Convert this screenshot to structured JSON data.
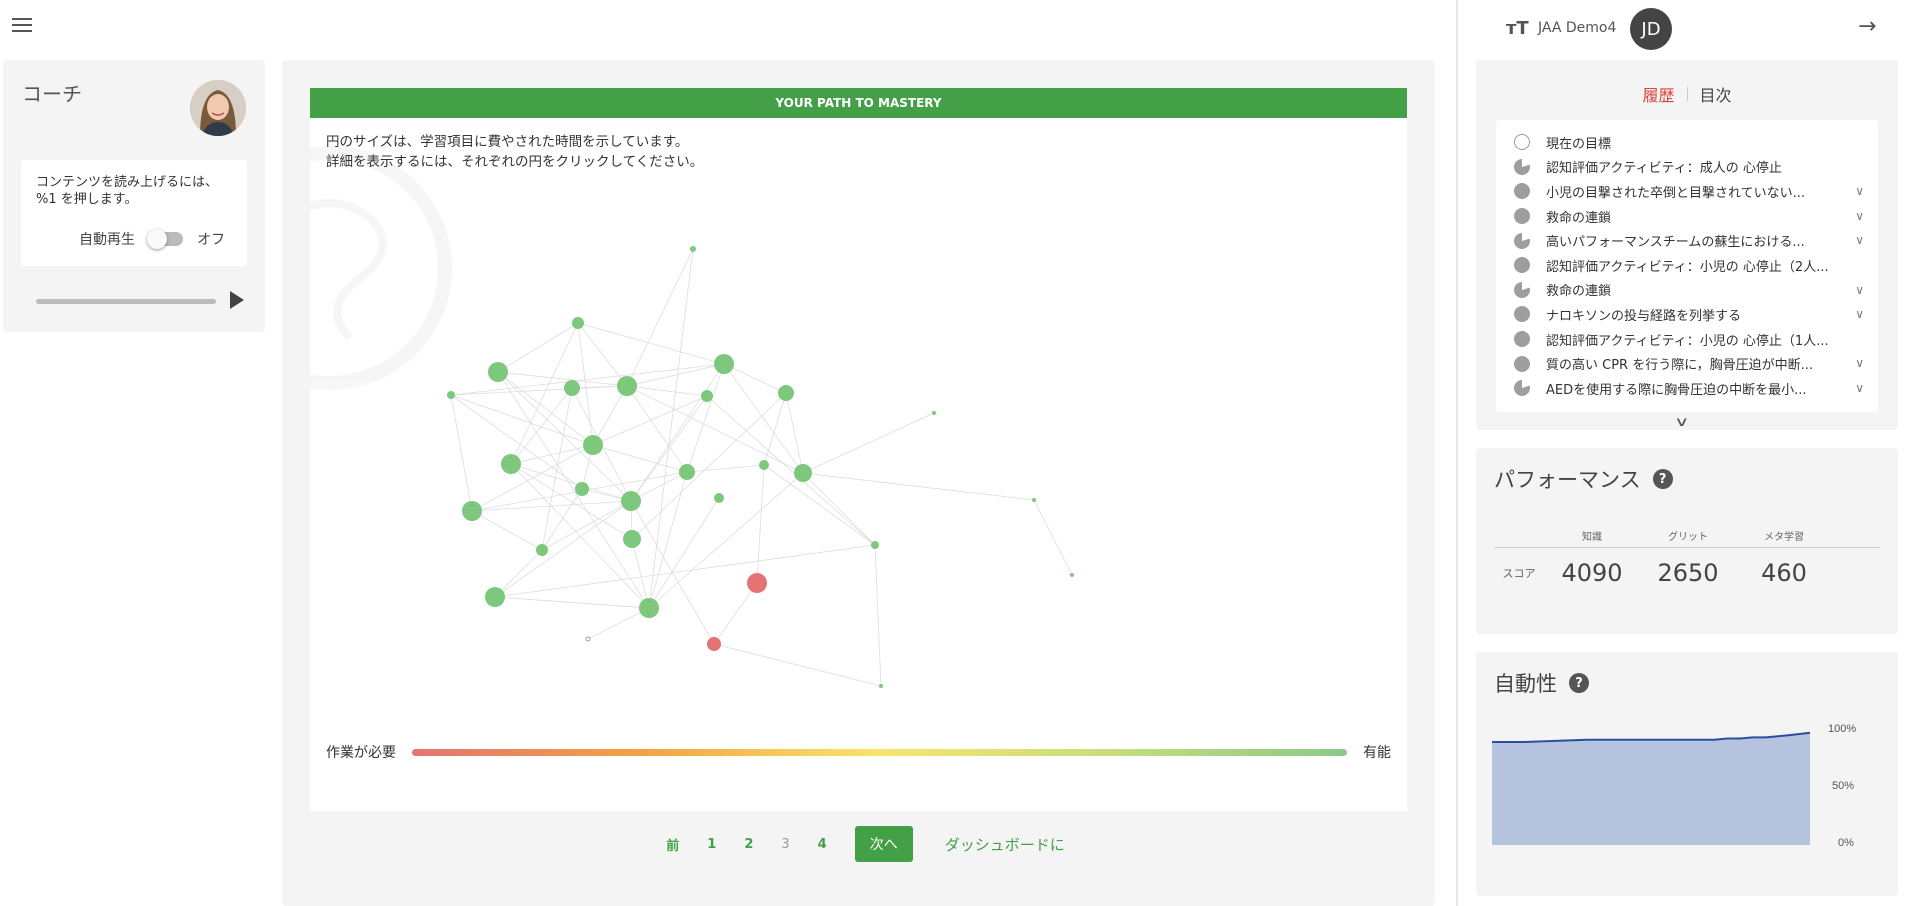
{
  "coach": {
    "title": "コーチ",
    "message": "コンテンツを読み上げるには、%1 を押します。",
    "autoplay_label": "自動再生",
    "autoplay_state": "オフ",
    "audio_progress": 0
  },
  "mastery": {
    "header": "YOUR PATH TO MASTERY",
    "desc_line1": "円のサイズは、学習項目に費やされた時間を示しています。",
    "desc_line2": "詳細を表示するには、それぞれの円をクリックしてください。",
    "legend_low": "作業が必要",
    "legend_high": "有能",
    "colors": {
      "green": "#7dc87c",
      "red": "#e57373",
      "edge": "#dddddd"
    }
  },
  "pagination": {
    "prev": "前",
    "pages": [
      "1",
      "2",
      "3",
      "4"
    ],
    "current": "3",
    "next": "次へ",
    "dashboard": "ダッシュボードに"
  },
  "user": {
    "font_icon": "тT",
    "name": "JAA Demo4",
    "initials": "JD"
  },
  "history": {
    "tab_history": "履歴",
    "tab_next": "目次",
    "items": [
      {
        "label": "現在の目標",
        "state": "empty",
        "chevron": false
      },
      {
        "label": "認知評価アクティビティ：成人の 心停止",
        "state": "partial",
        "chevron": false
      },
      {
        "label": "小児の目撃された卒倒と目撃されていない...",
        "state": "full",
        "chevron": true
      },
      {
        "label": "救命の連鎖",
        "state": "full",
        "chevron": true
      },
      {
        "label": "高いパフォーマンスチームの蘇生における...",
        "state": "partial",
        "chevron": true
      },
      {
        "label": "認知評価アクティビティ：小児の 心停止（2人...",
        "state": "full",
        "chevron": false
      },
      {
        "label": "救命の連鎖",
        "state": "partial",
        "chevron": true
      },
      {
        "label": "ナロキソンの投与経路を列挙する",
        "state": "full",
        "chevron": true
      },
      {
        "label": "認知評価アクティビティ：小児の 心停止（1人...",
        "state": "full",
        "chevron": false
      },
      {
        "label": "質の高い CPR を行う際に，胸骨圧迫が中断...",
        "state": "full",
        "chevron": true
      },
      {
        "label": "AEDを使用する際に胸骨圧迫の中断を最小...",
        "state": "partial",
        "chevron": true
      }
    ]
  },
  "performance": {
    "title": "パフォーマンス",
    "headers": [
      "知識",
      "グリット",
      "メタ学習"
    ],
    "row_label": "スコア",
    "values": [
      "4090",
      "2650",
      "460"
    ]
  },
  "automaticity": {
    "title": "自動性",
    "axis_labels": [
      "100%",
      "50%",
      "0%"
    ],
    "color_line": "#2b4fa0",
    "color_fill": "#b6c3de"
  },
  "chart_data": {
    "type": "area",
    "x": [
      0,
      0.1,
      0.2,
      0.3,
      0.4,
      0.5,
      0.6,
      0.7,
      0.74,
      0.78,
      0.82,
      0.86,
      0.9,
      0.94,
      0.97,
      1.0
    ],
    "series": [
      {
        "values": [
          88,
          88,
          89,
          90,
          90,
          90,
          90,
          90,
          91,
          91,
          92,
          92,
          93,
          94,
          95,
          96
        ]
      }
    ],
    "ylim": [
      0,
      100
    ],
    "ytick_labels": [
      "100%",
      "50%",
      "0%"
    ]
  }
}
